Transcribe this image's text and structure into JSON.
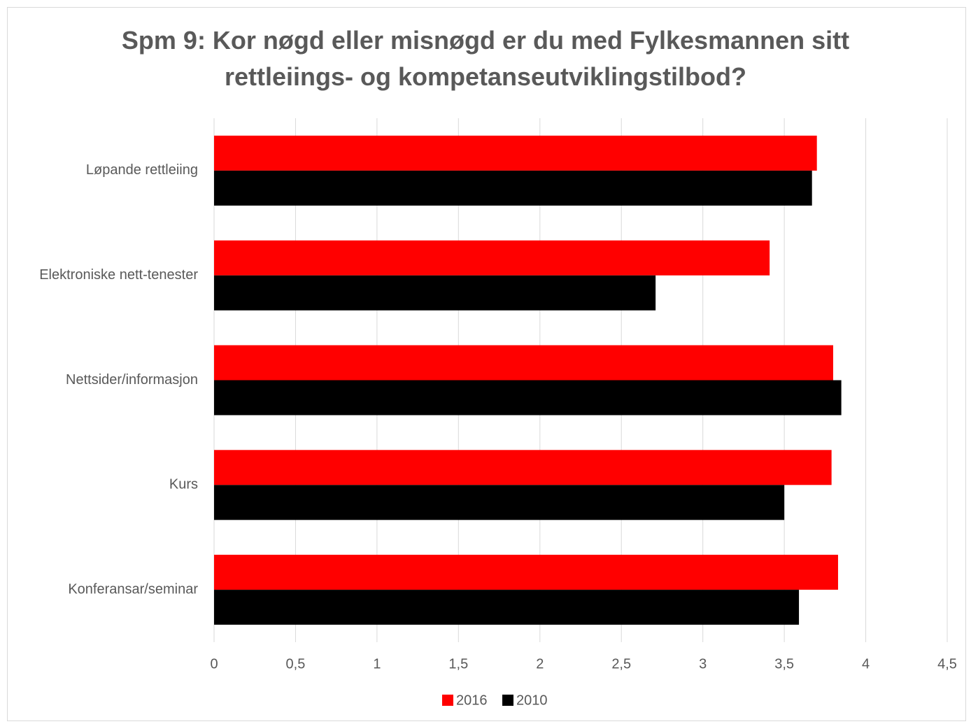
{
  "chart_data": {
    "type": "bar",
    "orientation": "horizontal",
    "title": "Spm 9: Kor nøgd eller misnøgd er du med Fylkesmannen sitt rettleiings- og kompetanseutviklingstilbod?",
    "categories": [
      "Løpande rettleiing",
      "Elektroniske nett-tenester",
      "Nettsider/informasjon",
      "Kurs",
      "Konferansar/seminar"
    ],
    "series": [
      {
        "name": "2016",
        "color": "#ff0000",
        "values": [
          3.7,
          3.41,
          3.8,
          3.79,
          3.83
        ]
      },
      {
        "name": "2010",
        "color": "#000000",
        "values": [
          3.67,
          2.71,
          3.85,
          3.5,
          3.59
        ]
      }
    ],
    "xlim": [
      0,
      4.5
    ],
    "xticks": [
      0,
      {
        "value": 0.5,
        "label": "0,5"
      },
      1,
      {
        "value": 1.5,
        "label": "1,5"
      },
      2,
      {
        "value": 2.5,
        "label": "2,5"
      },
      3,
      {
        "value": 3.5,
        "label": "3,5"
      },
      4,
      {
        "value": 4.5,
        "label": "4,5"
      }
    ],
    "grid": true,
    "legend": "bottom"
  }
}
